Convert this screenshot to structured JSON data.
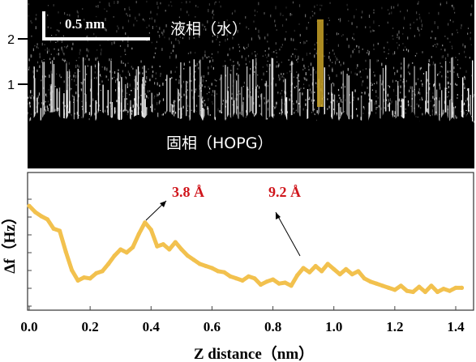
{
  "image_panel": {
    "y_ticks": [
      "2",
      "1"
    ],
    "scale_bar_label": "0.5 nm",
    "label_liquid": "液相（水）",
    "label_solid": "固相（HOPG）",
    "colors": {
      "background": "#000000",
      "noise": "#ffffff",
      "marker": "#c9a227"
    }
  },
  "chart_data": {
    "type": "line",
    "xlabel": "Z distance（nm）",
    "ylabel": "Δf（Hz）",
    "xlim": [
      0,
      1.45
    ],
    "x_ticks": [
      "0.0",
      "0.2",
      "0.4",
      "0.6",
      "0.8",
      "1.0",
      "1.2",
      "1.4"
    ],
    "y_tick_count": 7,
    "ylim": [
      0,
      1
    ],
    "line_color": "#f2c14e",
    "annotation_color": "#d0161c",
    "series": [
      {
        "x": [
          0.0,
          0.02,
          0.04,
          0.06,
          0.08,
          0.1,
          0.12,
          0.14,
          0.16,
          0.18,
          0.2,
          0.22,
          0.24,
          0.26,
          0.28,
          0.3,
          0.32,
          0.34,
          0.36,
          0.38,
          0.4,
          0.42,
          0.44,
          0.46,
          0.48,
          0.5,
          0.52,
          0.54,
          0.56,
          0.58,
          0.6,
          0.62,
          0.64,
          0.66,
          0.68,
          0.7,
          0.72,
          0.74,
          0.76,
          0.78,
          0.8,
          0.82,
          0.84,
          0.86,
          0.88,
          0.9,
          0.92,
          0.94,
          0.96,
          0.98,
          1.0,
          1.02,
          1.04,
          1.06,
          1.08,
          1.1,
          1.12,
          1.14,
          1.16,
          1.18,
          1.2,
          1.22,
          1.24,
          1.26,
          1.28,
          1.3,
          1.32,
          1.34,
          1.36,
          1.38,
          1.4,
          1.42
        ],
        "values": [
          0.92,
          0.86,
          0.82,
          0.79,
          0.7,
          0.68,
          0.48,
          0.3,
          0.2,
          0.23,
          0.22,
          0.27,
          0.29,
          0.36,
          0.44,
          0.5,
          0.47,
          0.52,
          0.65,
          0.76,
          0.69,
          0.53,
          0.55,
          0.5,
          0.57,
          0.5,
          0.44,
          0.4,
          0.36,
          0.34,
          0.32,
          0.29,
          0.28,
          0.24,
          0.22,
          0.2,
          0.24,
          0.22,
          0.16,
          0.19,
          0.21,
          0.17,
          0.18,
          0.15,
          0.25,
          0.32,
          0.28,
          0.34,
          0.29,
          0.36,
          0.31,
          0.26,
          0.31,
          0.26,
          0.29,
          0.22,
          0.19,
          0.17,
          0.15,
          0.13,
          0.11,
          0.15,
          0.1,
          0.09,
          0.14,
          0.09,
          0.15,
          0.09,
          0.12,
          0.1,
          0.13,
          0.13
        ]
      }
    ],
    "annotations": [
      {
        "text": "3.8 Å",
        "points_to_x": 0.38
      },
      {
        "text": "9.2 Å",
        "points_to_x": 0.92
      }
    ]
  }
}
